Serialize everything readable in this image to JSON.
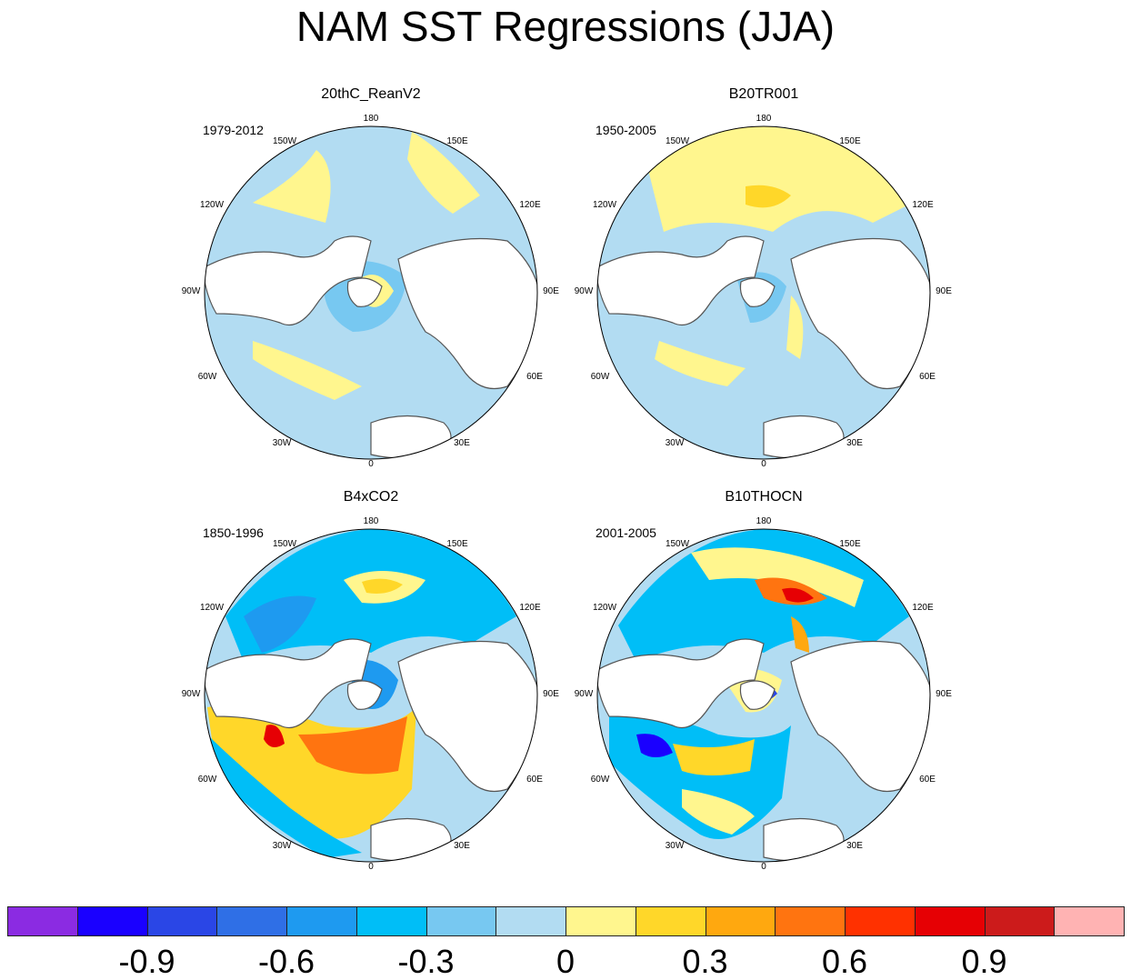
{
  "title": "NAM SST Regressions (JJA)",
  "panels": [
    {
      "name": "20thC_ReanV2",
      "period": "1979-2012"
    },
    {
      "name": "B20TR001",
      "period": "1950-2005"
    },
    {
      "name": "B4xCO2",
      "period": "1850-1996"
    },
    {
      "name": "B10THOCN",
      "period": "2001-2005"
    }
  ],
  "lon_labels": {
    "top": "180",
    "tl": "150W",
    "tr": "150E",
    "ul": "120W",
    "ur": "120E",
    "l": "90W",
    "r": "90E",
    "ll": "60W",
    "lr": "60E",
    "bl": "30W",
    "br": "30E",
    "bottom": "0"
  },
  "colorbar": {
    "colors": [
      "#8b2be2",
      "#1a00ff",
      "#2a46e6",
      "#2f6fe6",
      "#1e9af0",
      "#00bef7",
      "#77c8f1",
      "#b2dcf2",
      "#fff68e",
      "#ffd729",
      "#ffa80f",
      "#ff7410",
      "#ff3100",
      "#e60004",
      "#cc1b1b",
      "#ffb3b3"
    ],
    "ticks": [
      "-0.9",
      "-0.6",
      "-0.3",
      "0",
      "0.3",
      "0.6",
      "0.9"
    ]
  }
}
